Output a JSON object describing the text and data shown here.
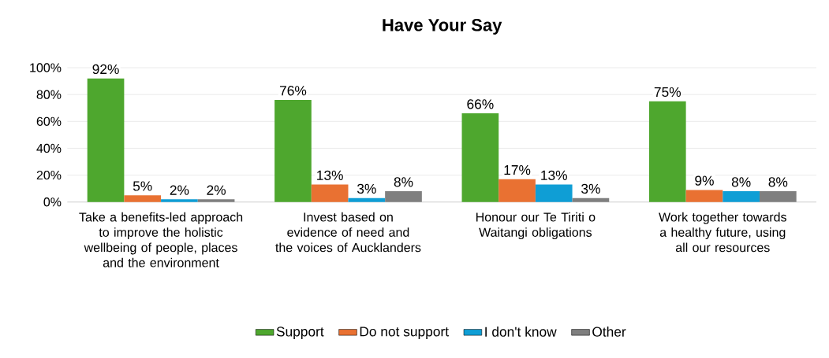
{
  "chart_data": {
    "type": "bar",
    "title": "Have Your Say",
    "categories": [
      "Take a benefits-led approach to improve the holistic wellbeing of people, places and the environment",
      "Invest based on evidence of need and the voices of Aucklanders",
      "Honour our Te Tiriti o Waitangi obligations",
      "Work together towards a healthy future, using all our resources"
    ],
    "series": [
      {
        "name": "Support",
        "color": "#4ea72e",
        "values": [
          92,
          76,
          66,
          75
        ],
        "value_labels": [
          "92%",
          "76%",
          "66%",
          "75%"
        ]
      },
      {
        "name": "Do not support",
        "color": "#e97132",
        "values": [
          5,
          13,
          17,
          9
        ],
        "value_labels": [
          "5%",
          "13%",
          "17%",
          "9%"
        ]
      },
      {
        "name": "I don't know",
        "color": "#0f9ed5",
        "values": [
          2,
          3,
          13,
          8
        ],
        "value_labels": [
          "2%",
          "3%",
          "13%",
          "8%"
        ]
      },
      {
        "name": "Other",
        "color": "#7f7f7f",
        "values": [
          2,
          8,
          3,
          8
        ],
        "value_labels": [
          "2%",
          "8%",
          "3%",
          "8%"
        ]
      }
    ],
    "ylim": [
      0,
      100
    ],
    "yticks": [
      {
        "value": 0,
        "label": "0%"
      },
      {
        "value": 20,
        "label": "20%"
      },
      {
        "value": 40,
        "label": "40%"
      },
      {
        "value": 60,
        "label": "60%"
      },
      {
        "value": 80,
        "label": "80%"
      },
      {
        "value": 100,
        "label": "100%"
      }
    ],
    "grid": "y",
    "legend": "bottom"
  }
}
